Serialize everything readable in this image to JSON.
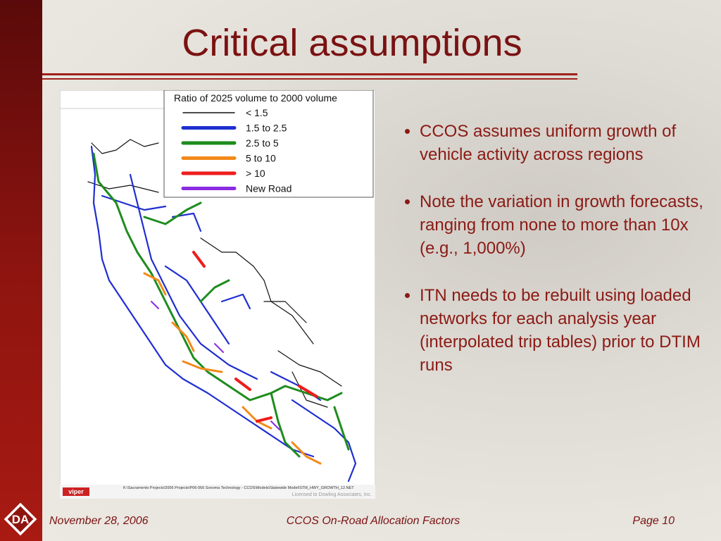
{
  "slide": {
    "title": "Critical assumptions",
    "map": {
      "legend_title": "Ratio of 2025 volume to 2000 volume",
      "legend": [
        {
          "label": "< 1.5",
          "color": "#111111"
        },
        {
          "label": "1.5 to 2.5",
          "color": "#1f2fd0"
        },
        {
          "label": "2.5 to 5",
          "color": "#1e8c1e"
        },
        {
          "label": "5 to 10",
          "color": "#f28a1a"
        },
        {
          "label": "> 10",
          "color": "#ee1c1c"
        },
        {
          "label": "New Road",
          "color": "#8a2be2"
        }
      ],
      "brand": "viper",
      "file_path": "K:\\Sacramento Projects\\2006 Projects\\P06-066 Sonoma Technology - CCOS\\Models\\Statewide Model\\STM_HWY_GROWTH_12.NET",
      "license": "Licensed to Dowling Associates, Inc."
    },
    "bullets": [
      "CCOS assumes uniform growth of vehicle activity across regions",
      "Note the variation in growth forecasts, ranging from none to more than 10x (e.g., 1,000%)",
      "ITN needs to be rebuilt using loaded networks for each analysis year (interpolated trip tables) prior to DTIM runs"
    ],
    "footer": {
      "logo": "DA",
      "date": "November 28, 2006",
      "title": "CCOS On-Road Allocation Factors",
      "page": "Page 10"
    }
  }
}
